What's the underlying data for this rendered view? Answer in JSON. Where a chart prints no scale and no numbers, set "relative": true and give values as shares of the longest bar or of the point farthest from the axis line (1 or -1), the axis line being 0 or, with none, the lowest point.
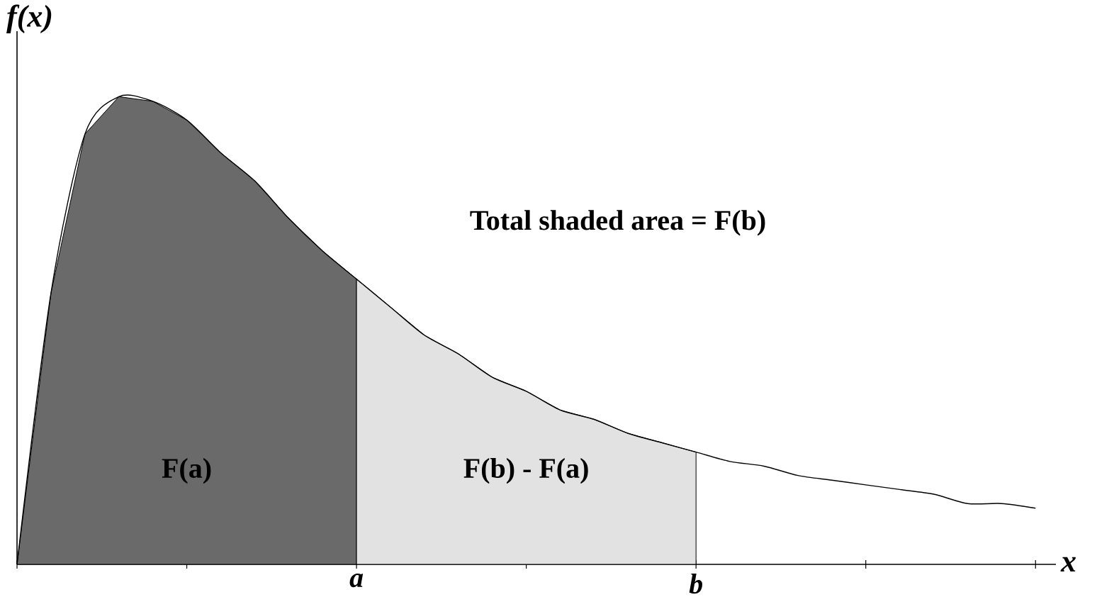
{
  "chart_data": {
    "type": "area",
    "relative": true,
    "xlabel": "x",
    "ylabel": "f(x)",
    "categories": [
      null,
      null,
      null,
      null,
      null,
      null,
      null,
      null,
      null,
      null,
      "a",
      null,
      null,
      null,
      null,
      null,
      null,
      null,
      null,
      null,
      "b",
      null,
      null,
      null,
      null,
      null,
      null,
      null,
      null,
      null,
      null
    ],
    "series": [
      {
        "name": "F(a)",
        "type": "area",
        "color": "#6a6a6a",
        "values": [
          0,
          0.58,
          0.92,
          1.0,
          0.99,
          0.95,
          0.88,
          0.82,
          0.74,
          0.67,
          0.61,
          null,
          null,
          null,
          null,
          null,
          null,
          null,
          null,
          null,
          null,
          null,
          null,
          null,
          null,
          null,
          null,
          null,
          null,
          null,
          null
        ]
      },
      {
        "name": "F(b) - F(a)",
        "type": "area",
        "color": "#e2e2e2",
        "values": [
          null,
          null,
          null,
          null,
          null,
          null,
          null,
          null,
          null,
          null,
          0.61,
          0.55,
          0.49,
          0.45,
          0.4,
          0.37,
          0.33,
          0.31,
          0.28,
          0.26,
          0.24,
          null,
          null,
          null,
          null,
          null,
          null,
          null,
          null,
          null,
          null
        ]
      },
      {
        "type": "line",
        "color": "#000000",
        "values": [
          0,
          0.58,
          0.92,
          1.0,
          0.99,
          0.95,
          0.88,
          0.82,
          0.74,
          0.67,
          0.61,
          0.55,
          0.49,
          0.45,
          0.4,
          0.37,
          0.33,
          0.31,
          0.28,
          0.26,
          0.24,
          0.22,
          0.21,
          0.19,
          0.18,
          0.17,
          0.16,
          0.15,
          0.13,
          0.13,
          0.12
        ]
      }
    ],
    "annotations": [
      "Total shaded area = F(b)"
    ]
  }
}
